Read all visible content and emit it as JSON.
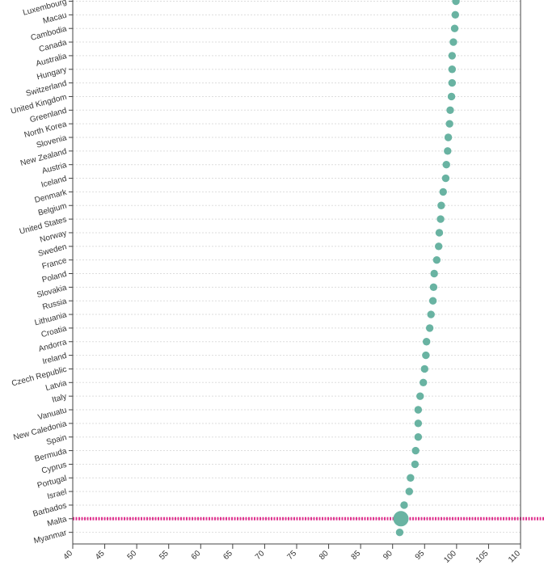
{
  "chart_data": {
    "type": "scatter",
    "title": "",
    "xlabel": "",
    "ylabel": "",
    "xlim": [
      40,
      110
    ],
    "xticks": [
      40,
      45,
      50,
      55,
      60,
      65,
      70,
      75,
      80,
      85,
      90,
      95,
      100,
      105,
      110
    ],
    "grid": "horizontal dashed",
    "marker_color": "#69b3a2",
    "highlight_color": "#e0348f",
    "highlight": {
      "category": "Malta",
      "value": 91.3
    },
    "categories": [
      "Luxembourg",
      "Macau",
      "Cambodia",
      "Canada",
      "Australia",
      "Hungary",
      "Switzerland",
      "United Kingdom",
      "Greenland",
      "North Korea",
      "Slovenia",
      "New Zealand",
      "Austria",
      "Iceland",
      "Denmark",
      "Belgium",
      "United States",
      "Norway",
      "Sweden",
      "France",
      "Poland",
      "Slovakia",
      "Russia",
      "Lithuania",
      "Croatia",
      "Andorra",
      "Ireland",
      "Czech Republic",
      "Latvia",
      "Italy",
      "Vanuatu",
      "New Caledonia",
      "Spain",
      "Bermuda",
      "Cyprus",
      "Portugal",
      "Israel",
      "Barbados",
      "Malta",
      "Myanmar"
    ],
    "values": [
      99.9,
      99.8,
      99.7,
      99.5,
      99.3,
      99.3,
      99.3,
      99.2,
      99.0,
      98.9,
      98.7,
      98.6,
      98.4,
      98.3,
      97.9,
      97.6,
      97.5,
      97.3,
      97.2,
      96.9,
      96.5,
      96.4,
      96.3,
      96.0,
      95.8,
      95.3,
      95.2,
      95.0,
      94.8,
      94.3,
      94.0,
      94.0,
      94.0,
      93.6,
      93.5,
      92.8,
      92.6,
      91.8,
      91.3,
      91.1
    ]
  }
}
